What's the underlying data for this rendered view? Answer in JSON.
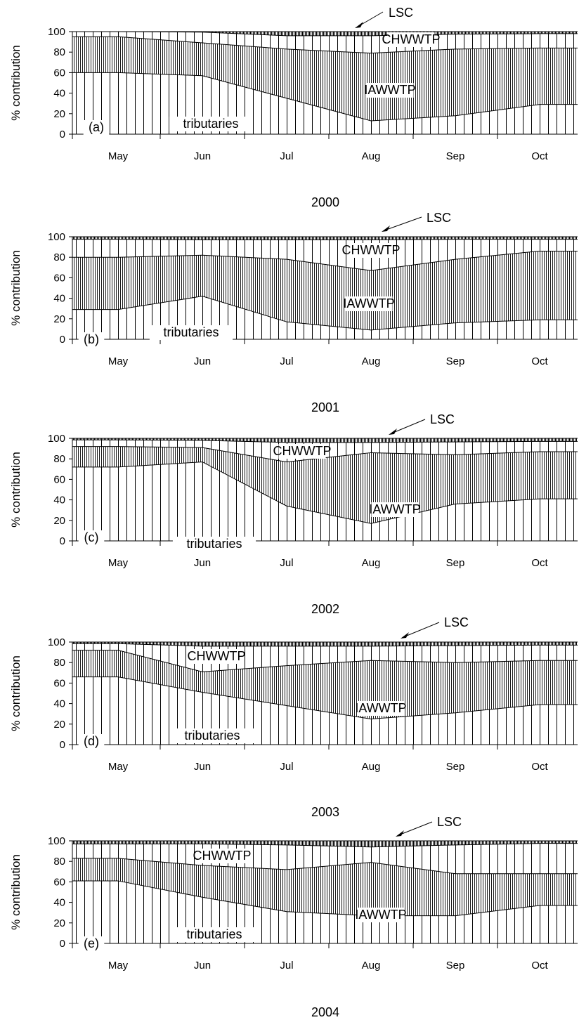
{
  "chart_data": [
    {
      "type": "area",
      "panel": "(a)",
      "year_label": "2000",
      "ylabel": "% contribution",
      "ylim": [
        0,
        100
      ],
      "yticks": [
        0,
        20,
        40,
        60,
        80,
        100
      ],
      "months": [
        "May",
        "Jun",
        "Jul",
        "Aug",
        "Sep",
        "Oct"
      ],
      "x": [
        0,
        1,
        2,
        3,
        4,
        5
      ],
      "series": [
        {
          "name": "tributaries",
          "values": [
            60,
            57,
            35,
            13,
            18,
            29
          ]
        },
        {
          "name": "IAWWTP",
          "values": [
            95,
            89,
            83,
            79,
            83,
            84
          ]
        },
        {
          "name": "CHWWTP",
          "values": [
            100,
            99.5,
            96,
            96,
            97.5,
            98
          ]
        },
        {
          "name": "LSC",
          "values": [
            100,
            100,
            100,
            100,
            100,
            100
          ]
        }
      ],
      "labels": {
        "tributaries": "tributaries",
        "iawwtp": "IAWWTP",
        "chwwtp": "CHWWTP",
        "lsc": "LSC"
      }
    },
    {
      "type": "area",
      "panel": "(b)",
      "year_label": "2001",
      "ylabel": "% contribution",
      "ylim": [
        0,
        100
      ],
      "yticks": [
        0,
        20,
        40,
        60,
        80,
        100
      ],
      "months": [
        "May",
        "Jun",
        "Jul",
        "Aug",
        "Sep",
        "Oct"
      ],
      "x": [
        0,
        1,
        2,
        3,
        4,
        5
      ],
      "series": [
        {
          "name": "tributaries",
          "values": [
            29,
            42,
            17,
            9,
            16,
            19
          ]
        },
        {
          "name": "IAWWTP",
          "values": [
            80,
            82,
            78,
            67,
            78,
            86
          ]
        },
        {
          "name": "CHWWTP",
          "values": [
            97.5,
            97,
            97,
            97,
            97.5,
            97.5
          ]
        },
        {
          "name": "LSC",
          "values": [
            100,
            100,
            100,
            100,
            100,
            100
          ]
        }
      ],
      "labels": {
        "tributaries": "tributaries",
        "iawwtp": "IAWWTP",
        "chwwtp": "CHWWTP",
        "lsc": "LSC"
      }
    },
    {
      "type": "area",
      "panel": "(c)",
      "year_label": "2002",
      "ylabel": "% contribution",
      "ylim": [
        0,
        100
      ],
      "yticks": [
        0,
        20,
        40,
        60,
        80,
        100
      ],
      "months": [
        "May",
        "Jun",
        "Jul",
        "Aug",
        "Sep",
        "Oct"
      ],
      "x": [
        0,
        1,
        2,
        3,
        4,
        5
      ],
      "series": [
        {
          "name": "tributaries",
          "values": [
            72,
            77,
            34,
            17,
            36,
            41
          ]
        },
        {
          "name": "IAWWTP",
          "values": [
            92,
            91,
            77,
            86,
            84,
            87
          ]
        },
        {
          "name": "CHWWTP",
          "values": [
            98.5,
            98,
            96,
            96,
            96.5,
            97
          ]
        },
        {
          "name": "LSC",
          "values": [
            100,
            100,
            100,
            100,
            100,
            100
          ]
        }
      ],
      "labels": {
        "tributaries": "tributaries",
        "iawwtp": "IAWWTP",
        "chwwtp": "CHWWTP",
        "lsc": "LSC"
      }
    },
    {
      "type": "area",
      "panel": "(d)",
      "year_label": "2003",
      "ylabel": "% contribution",
      "ylim": [
        0,
        100
      ],
      "yticks": [
        0,
        20,
        40,
        60,
        80,
        100
      ],
      "months": [
        "May",
        "Jun",
        "Jul",
        "Aug",
        "Sep",
        "Oct"
      ],
      "x": [
        0,
        1,
        2,
        3,
        4,
        5
      ],
      "series": [
        {
          "name": "tributaries",
          "values": [
            66,
            51,
            38,
            25,
            31,
            39
          ]
        },
        {
          "name": "IAWWTP",
          "values": [
            92,
            71,
            77,
            82,
            80,
            82
          ]
        },
        {
          "name": "CHWWTP",
          "values": [
            98.5,
            96,
            96,
            96,
            96.5,
            97
          ]
        },
        {
          "name": "LSC",
          "values": [
            100,
            100,
            100,
            100,
            100,
            100
          ]
        }
      ],
      "labels": {
        "tributaries": "tributaries",
        "iawwtp": "IAWWTP",
        "chwwtp": "CHWWTP",
        "lsc": "LSC"
      }
    },
    {
      "type": "area",
      "panel": "(e)",
      "year_label": "2004",
      "ylabel": "% contribution",
      "ylim": [
        0,
        100
      ],
      "yticks": [
        0,
        20,
        40,
        60,
        80,
        100
      ],
      "months": [
        "May",
        "Jun",
        "Jul",
        "Aug",
        "Sep",
        "Oct"
      ],
      "x": [
        0,
        1,
        2,
        3,
        4,
        5
      ],
      "series": [
        {
          "name": "tributaries",
          "values": [
            61,
            45,
            31,
            27,
            27,
            37
          ]
        },
        {
          "name": "IAWWTP",
          "values": [
            83,
            76,
            72,
            79,
            68,
            68
          ]
        },
        {
          "name": "CHWWTP",
          "values": [
            97,
            97,
            96,
            94,
            96,
            97.5
          ]
        },
        {
          "name": "LSC",
          "values": [
            100,
            100,
            100,
            100,
            100,
            100
          ]
        }
      ],
      "labels": {
        "tributaries": "tributaries",
        "iawwtp": "IAWWTP",
        "chwwtp": "CHWWTP",
        "lsc": "LSC"
      }
    }
  ]
}
